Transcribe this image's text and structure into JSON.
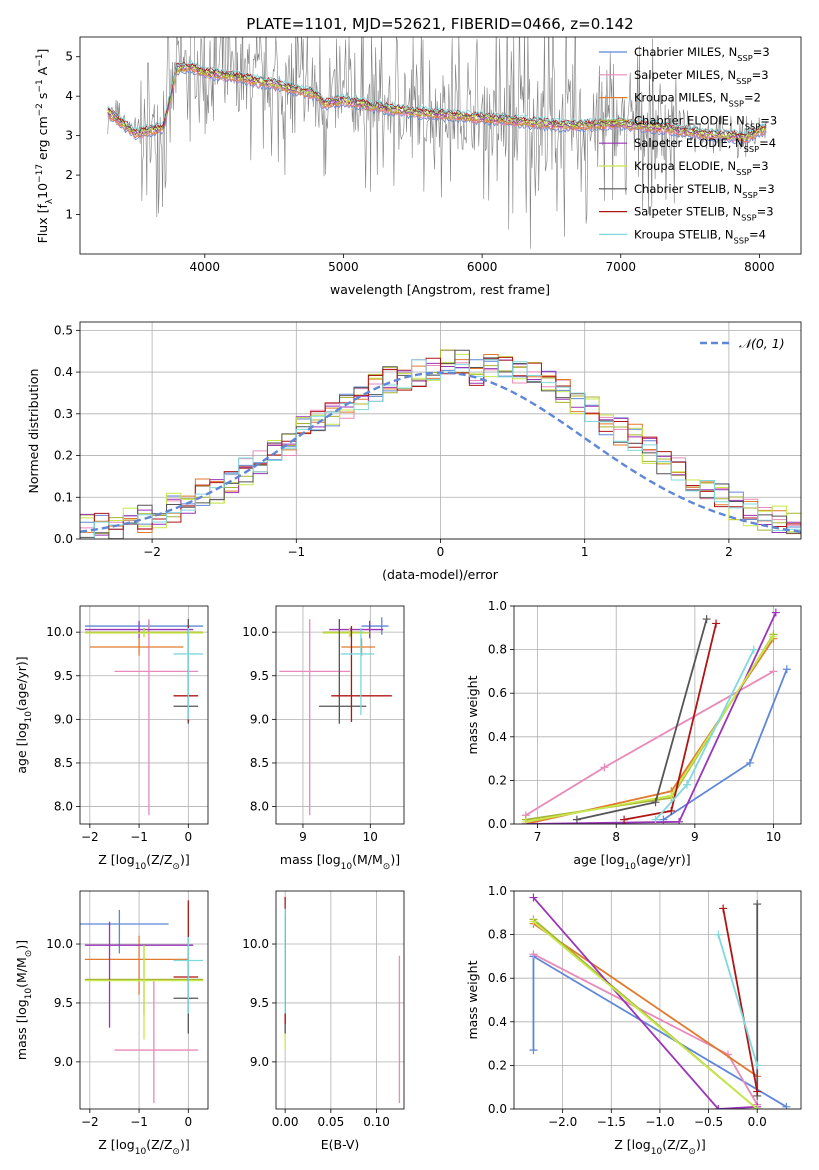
{
  "title": "PLATE=1101, MJD=52621, FIBERID=0466, z=0.142",
  "colors": {
    "chabrier_miles": "#5f87d6",
    "salpeter_miles": "#e88aba",
    "kroupa_miles": "#e07a2e",
    "chabrier_elodie": "#a8b233",
    "salpeter_elodie": "#9a35b8",
    "kroupa_elodie": "#c6e84a",
    "chabrier_stelib": "#555555",
    "salpeter_stelib": "#b01515",
    "kroupa_stelib": "#7fd8dc",
    "data": "#808080",
    "normal": "#5f87d6"
  },
  "chart_data": [
    {
      "id": "spectrum",
      "type": "line",
      "xlabel": "wavelength [Angstrom, rest frame]",
      "ylabel": "Flux [f",
      "ylabel_parts": [
        "Flux [f",
        "λ",
        "10",
        "−17",
        " erg cm",
        "−2",
        " s",
        "−1",
        " A",
        "−1",
        "]"
      ],
      "xlim": [
        3100,
        8300
      ],
      "ylim": [
        0,
        5.5
      ],
      "xticks": [
        "4000",
        "5000",
        "6000",
        "7000",
        "8000"
      ],
      "yticks": [
        "1",
        "2",
        "3",
        "4",
        "5"
      ],
      "legend": [
        {
          "base": "Chabrier MILES, N",
          "sub": "SSP",
          "tail": "=3"
        },
        {
          "base": "Salpeter MILES, N",
          "sub": "SSP",
          "tail": "=3"
        },
        {
          "base": "Kroupa MILES, N",
          "sub": "SSP",
          "tail": "=2"
        },
        {
          "base": "Chabrier ELODIE, N",
          "sub": "SSP",
          "tail": "=3"
        },
        {
          "base": "Salpeter ELODIE, N",
          "sub": "SSP",
          "tail": "=4"
        },
        {
          "base": "Kroupa ELODIE, N",
          "sub": "SSP",
          "tail": "=3"
        },
        {
          "base": "Chabrier STELIB, N",
          "sub": "SSP",
          "tail": "=3"
        },
        {
          "base": "Salpeter STELIB, N",
          "sub": "SSP",
          "tail": "=3"
        },
        {
          "base": "Kroupa STELIB, N",
          "sub": "SSP",
          "tail": "=4"
        }
      ],
      "legend_placement": "upper right",
      "model_trend": {
        "x": [
          3300,
          3500,
          3700,
          3800,
          3900,
          4000,
          4200,
          4500,
          4800,
          4860,
          5000,
          5200,
          5500,
          5800,
          6000,
          6300,
          6600,
          7000,
          7300,
          7600,
          7900,
          8050
        ],
        "y": [
          3.6,
          3.05,
          3.2,
          4.7,
          4.75,
          4.6,
          4.5,
          4.3,
          4.05,
          3.8,
          3.9,
          3.75,
          3.6,
          3.5,
          3.45,
          3.35,
          3.25,
          3.3,
          3.2,
          3.05,
          2.95,
          3.2
        ]
      }
    },
    {
      "id": "residuals",
      "type": "histogram",
      "xlabel": "(data-model)/error",
      "ylabel": "Normed distribution",
      "xlim": [
        -2.5,
        2.5
      ],
      "ylim": [
        0,
        0.52
      ],
      "xticks": [
        "−2",
        "−1",
        "0",
        "1",
        "2"
      ],
      "yticks": [
        "0.0",
        "0.1",
        "0.2",
        "0.3",
        "0.4",
        "0.5"
      ],
      "grid": true,
      "legend": "𝒩(0, 1)",
      "legend_placement": "upper right",
      "bin_width": 0.1,
      "hist_base": [
        0.02,
        0.022,
        0.025,
        0.028,
        0.032,
        0.04,
        0.05,
        0.06,
        0.075,
        0.09,
        0.11,
        0.12,
        0.14,
        0.16,
        0.19,
        0.21,
        0.23,
        0.26,
        0.28,
        0.3,
        0.32,
        0.34,
        0.36,
        0.38,
        0.39,
        0.4,
        0.41,
        0.42,
        0.43,
        0.4,
        0.42,
        0.41,
        0.4,
        0.39,
        0.37,
        0.35,
        0.33,
        0.31,
        0.28,
        0.26,
        0.24,
        0.21,
        0.19,
        0.16,
        0.14,
        0.12,
        0.1,
        0.08,
        0.065,
        0.055,
        0.045,
        0.04,
        0.035,
        0.03
      ]
    },
    {
      "id": "age_vs_z",
      "type": "errorbar",
      "xlabel": "Z [log10(Z/Z⊙)]",
      "xlabel_parts": [
        "Z [log",
        "10",
        "(Z/Z",
        "⊙",
        ")]"
      ],
      "ylabel_parts": [
        "age  [log",
        "10",
        "(age/yr)]"
      ],
      "xlim": [
        -2.2,
        0.4
      ],
      "ylim": [
        7.8,
        10.3
      ],
      "xticks": [
        "−2",
        "−1",
        "0"
      ],
      "yticks": [
        "8.0",
        "8.5",
        "9.0",
        "9.5",
        "10.0"
      ],
      "points": [
        {
          "x": -0.8,
          "xerr": [
            1.3,
            1.1
          ],
          "y": 10.07,
          "yerr": [
            0.1,
            0.07
          ],
          "c": "chabrier_miles"
        },
        {
          "x": -0.8,
          "xerr": [
            0.7,
            1.0
          ],
          "y": 9.55,
          "yerr": [
            1.65,
            0.6
          ],
          "c": "salpeter_miles"
        },
        {
          "x": -1.0,
          "xerr": [
            1.0,
            0.9
          ],
          "y": 9.83,
          "yerr": [
            0.1,
            0.1
          ],
          "c": "kroupa_miles"
        },
        {
          "x": -0.9,
          "xerr": [
            1.2,
            1.2
          ],
          "y": 10.0,
          "yerr": [
            0.05,
            0.05
          ],
          "c": "chabrier_elodie"
        },
        {
          "x": -1.0,
          "xerr": [
            1.1,
            1.1
          ],
          "y": 10.03,
          "yerr": [
            0.1,
            0.1
          ],
          "c": "salpeter_elodie"
        },
        {
          "x": -0.9,
          "xerr": [
            1.2,
            1.2
          ],
          "y": 9.99,
          "yerr": [
            0.05,
            0.05
          ],
          "c": "kroupa_elodie"
        },
        {
          "x": 0.0,
          "xerr": [
            0.3,
            0.2
          ],
          "y": 9.15,
          "yerr": [
            0.2,
            1.0
          ],
          "c": "chabrier_stelib"
        },
        {
          "x": 0.0,
          "xerr": [
            0.3,
            0.2
          ],
          "y": 9.27,
          "yerr": [
            0.3,
            0.8
          ],
          "c": "salpeter_stelib"
        },
        {
          "x": 0.0,
          "xerr": [
            0.3,
            0.3
          ],
          "y": 9.75,
          "yerr": [
            0.75,
            0.3
          ],
          "c": "kroupa_stelib"
        }
      ]
    },
    {
      "id": "age_vs_mass",
      "type": "errorbar",
      "xlabel_parts": [
        "mass [log",
        "10",
        "(M/M",
        "⊙",
        ")]"
      ],
      "xlim": [
        8.6,
        10.5
      ],
      "ylim": [
        7.8,
        10.3
      ],
      "xticks": [
        "9",
        "10"
      ],
      "yticks": [
        "8.0",
        "8.5",
        "9.0",
        "9.5",
        "10.0"
      ],
      "points": [
        {
          "x": 10.17,
          "xerr": [
            0.3,
            0.1
          ],
          "y": 10.07,
          "yerr": [
            0.1,
            0.1
          ],
          "c": "chabrier_miles"
        },
        {
          "x": 9.1,
          "xerr": [
            0.45,
            0.6
          ],
          "y": 9.55,
          "yerr": [
            1.65,
            0.6
          ],
          "c": "salpeter_miles"
        },
        {
          "x": 9.87,
          "xerr": [
            0.3,
            0.2
          ],
          "y": 9.83,
          "yerr": [
            0.1,
            0.1
          ],
          "c": "kroupa_miles"
        },
        {
          "x": 9.7,
          "xerr": [
            0.4,
            0.2
          ],
          "y": 10.0,
          "yerr": [
            0.05,
            0.05
          ],
          "c": "chabrier_elodie"
        },
        {
          "x": 9.99,
          "xerr": [
            0.6,
            0.2
          ],
          "y": 10.03,
          "yerr": [
            0.1,
            0.1
          ],
          "c": "salpeter_elodie"
        },
        {
          "x": 9.69,
          "xerr": [
            0.4,
            0.3
          ],
          "y": 9.99,
          "yerr": [
            0.05,
            0.05
          ],
          "c": "kroupa_elodie"
        },
        {
          "x": 9.54,
          "xerr": [
            0.3,
            0.4
          ],
          "y": 9.15,
          "yerr": [
            0.2,
            1.0
          ],
          "c": "chabrier_stelib"
        },
        {
          "x": 9.72,
          "xerr": [
            0.3,
            0.6
          ],
          "y": 9.27,
          "yerr": [
            0.3,
            0.8
          ],
          "c": "salpeter_stelib"
        },
        {
          "x": 9.86,
          "xerr": [
            0.3,
            0.2
          ],
          "y": 9.75,
          "yerr": [
            0.7,
            0.3
          ],
          "c": "kroupa_stelib"
        }
      ]
    },
    {
      "id": "cumulative_age",
      "type": "line",
      "xlabel_parts": [
        "age  [log",
        "10",
        "(age/yr)]"
      ],
      "ylabel": "mass weight",
      "xlim": [
        6.7,
        10.35
      ],
      "ylim": [
        0,
        1
      ],
      "xticks": [
        "7",
        "8",
        "9",
        "10"
      ],
      "yticks": [
        "0.0",
        "0.2",
        "0.4",
        "0.6",
        "0.8",
        "1.0"
      ],
      "grid": true,
      "series": [
        {
          "c": "chabrier_miles",
          "x": [
            8.6,
            9.7,
            10.17
          ],
          "y": [
            0.02,
            0.28,
            0.71
          ]
        },
        {
          "c": "salpeter_miles",
          "x": [
            6.85,
            7.85,
            10.0
          ],
          "y": [
            0.04,
            0.26,
            0.7
          ]
        },
        {
          "c": "kroupa_miles",
          "x": [
            6.85,
            8.7,
            10.0
          ],
          "y": [
            0.0,
            0.15,
            0.85
          ]
        },
        {
          "c": "chabrier_elodie",
          "x": [
            6.85,
            8.7,
            10.0
          ],
          "y": [
            0.02,
            0.12,
            0.87
          ]
        },
        {
          "c": "salpeter_elodie",
          "x": [
            6.85,
            8.8,
            10.03
          ],
          "y": [
            0.0,
            0.01,
            0.97
          ]
        },
        {
          "c": "kroupa_elodie",
          "x": [
            6.85,
            8.7,
            9.99
          ],
          "y": [
            0.01,
            0.13,
            0.86
          ]
        },
        {
          "c": "chabrier_stelib",
          "x": [
            7.5,
            8.5,
            9.15
          ],
          "y": [
            0.02,
            0.1,
            0.94
          ]
        },
        {
          "c": "salpeter_stelib",
          "x": [
            8.1,
            8.7,
            9.27
          ],
          "y": [
            0.02,
            0.06,
            0.92
          ]
        },
        {
          "c": "kroupa_stelib",
          "x": [
            8.5,
            8.9,
            9.75
          ],
          "y": [
            0.02,
            0.18,
            0.8
          ]
        }
      ]
    },
    {
      "id": "mass_vs_z",
      "type": "errorbar",
      "xlabel_parts": [
        "Z [log",
        "10",
        "(Z/Z",
        "⊙",
        ")]"
      ],
      "ylabel_parts": [
        "mass [log",
        "10",
        "(M/M",
        "⊙",
        ")]"
      ],
      "xlim": [
        -2.2,
        0.4
      ],
      "ylim": [
        8.6,
        10.45
      ],
      "xticks": [
        "−2",
        "−1",
        "0"
      ],
      "yticks": [
        "9.0",
        "9.5",
        "10.0"
      ],
      "points": [
        {
          "x": -1.4,
          "xerr": [
            0.8,
            1.0
          ],
          "y": 10.17,
          "yerr": [
            0.25,
            0.12
          ],
          "c": "chabrier_miles"
        },
        {
          "x": -0.7,
          "xerr": [
            0.8,
            0.9
          ],
          "y": 9.1,
          "yerr": [
            0.45,
            0.6
          ],
          "c": "salpeter_miles"
        },
        {
          "x": -1.0,
          "xerr": [
            1.1,
            1.0
          ],
          "y": 9.87,
          "yerr": [
            0.3,
            0.2
          ],
          "c": "kroupa_miles"
        },
        {
          "x": -0.9,
          "xerr": [
            1.2,
            1.2
          ],
          "y": 9.7,
          "yerr": [
            0.3,
            0.3
          ],
          "c": "chabrier_elodie"
        },
        {
          "x": -1.6,
          "xerr": [
            0.5,
            1.7
          ],
          "y": 9.99,
          "yerr": [
            0.7,
            0.2
          ],
          "c": "salpeter_elodie"
        },
        {
          "x": -0.9,
          "xerr": [
            1.2,
            1.2
          ],
          "y": 9.69,
          "yerr": [
            0.5,
            0.3
          ],
          "c": "kroupa_elodie"
        },
        {
          "x": 0.0,
          "xerr": [
            0.3,
            0.2
          ],
          "y": 9.54,
          "yerr": [
            0.3,
            0.4
          ],
          "c": "chabrier_stelib"
        },
        {
          "x": 0.0,
          "xerr": [
            0.3,
            0.2
          ],
          "y": 9.72,
          "yerr": [
            0.3,
            0.65
          ],
          "c": "salpeter_stelib"
        },
        {
          "x": 0.0,
          "xerr": [
            0.3,
            0.3
          ],
          "y": 9.86,
          "yerr": [
            0.45,
            0.2
          ],
          "c": "kroupa_stelib"
        }
      ]
    },
    {
      "id": "mass_vs_ebv",
      "type": "errorbar",
      "xlabel": "E(B-V)",
      "xlim": [
        -0.01,
        0.13
      ],
      "ylim": [
        8.6,
        10.45
      ],
      "xticks": [
        "0.00",
        "0.05",
        "0.10"
      ],
      "yticks": [
        "9.0",
        "9.5",
        "10.0"
      ],
      "points": [
        {
          "x": 0.0,
          "y": 10.17,
          "yerr": [
            0.25,
            0.12
          ],
          "c": "chabrier_miles"
        },
        {
          "x": 0.125,
          "y": 9.1,
          "yerr": [
            0.45,
            0.8
          ],
          "c": "salpeter_miles"
        },
        {
          "x": 0.0,
          "y": 9.87,
          "yerr": [
            0.3,
            0.2
          ],
          "c": "kroupa_miles"
        },
        {
          "x": 0.0,
          "y": 9.7,
          "yerr": [
            0.6,
            0.3
          ],
          "c": "kroupa_elodie"
        },
        {
          "x": 0.0,
          "y": 9.54,
          "yerr": [
            0.3,
            0.7
          ],
          "c": "chabrier_stelib"
        },
        {
          "x": 0.0,
          "y": 9.72,
          "yerr": [
            0.4,
            0.68
          ],
          "c": "salpeter_stelib"
        },
        {
          "x": 0.0,
          "y": 9.86,
          "yerr": [
            0.45,
            0.44
          ],
          "c": "kroupa_stelib"
        }
      ]
    },
    {
      "id": "cumulative_z",
      "type": "line",
      "xlabel_parts": [
        "Z [log",
        "10",
        "(Z/Z",
        "⊙",
        ")]"
      ],
      "ylabel": "mass weight",
      "xlim": [
        -2.5,
        0.45
      ],
      "ylim": [
        0,
        1
      ],
      "xticks": [
        "−2.0",
        "−1.5",
        "−1.0",
        "−0.5",
        "0.0"
      ],
      "yticks": [
        "0.0",
        "0.2",
        "0.4",
        "0.6",
        "0.8",
        "1.0"
      ],
      "grid": true,
      "series": [
        {
          "c": "chabrier_miles",
          "x": [
            -2.3,
            -2.3,
            0.3
          ],
          "y": [
            0.27,
            0.7,
            0.01
          ]
        },
        {
          "c": "salpeter_miles",
          "x": [
            -2.3,
            -0.3,
            0.0
          ],
          "y": [
            0.71,
            0.25,
            0.02
          ]
        },
        {
          "c": "kroupa_miles",
          "x": [
            -2.3,
            0.0
          ],
          "y": [
            0.85,
            0.15
          ]
        },
        {
          "c": "chabrier_elodie",
          "x": [
            -2.3,
            0.0
          ],
          "y": [
            0.87,
            0.0
          ]
        },
        {
          "c": "salpeter_elodie",
          "x": [
            -2.3,
            -0.4,
            0.0
          ],
          "y": [
            0.97,
            0.0,
            0.01
          ]
        },
        {
          "c": "kroupa_elodie",
          "x": [
            -2.3,
            0.0
          ],
          "y": [
            0.86,
            0.0
          ]
        },
        {
          "c": "chabrier_stelib",
          "x": [
            0.0,
            0.0
          ],
          "y": [
            0.94,
            0.06
          ]
        },
        {
          "c": "salpeter_stelib",
          "x": [
            -0.35,
            0.0
          ],
          "y": [
            0.92,
            0.08
          ]
        },
        {
          "c": "kroupa_stelib",
          "x": [
            -0.4,
            0.0
          ],
          "y": [
            0.8,
            0.2
          ]
        }
      ]
    }
  ]
}
